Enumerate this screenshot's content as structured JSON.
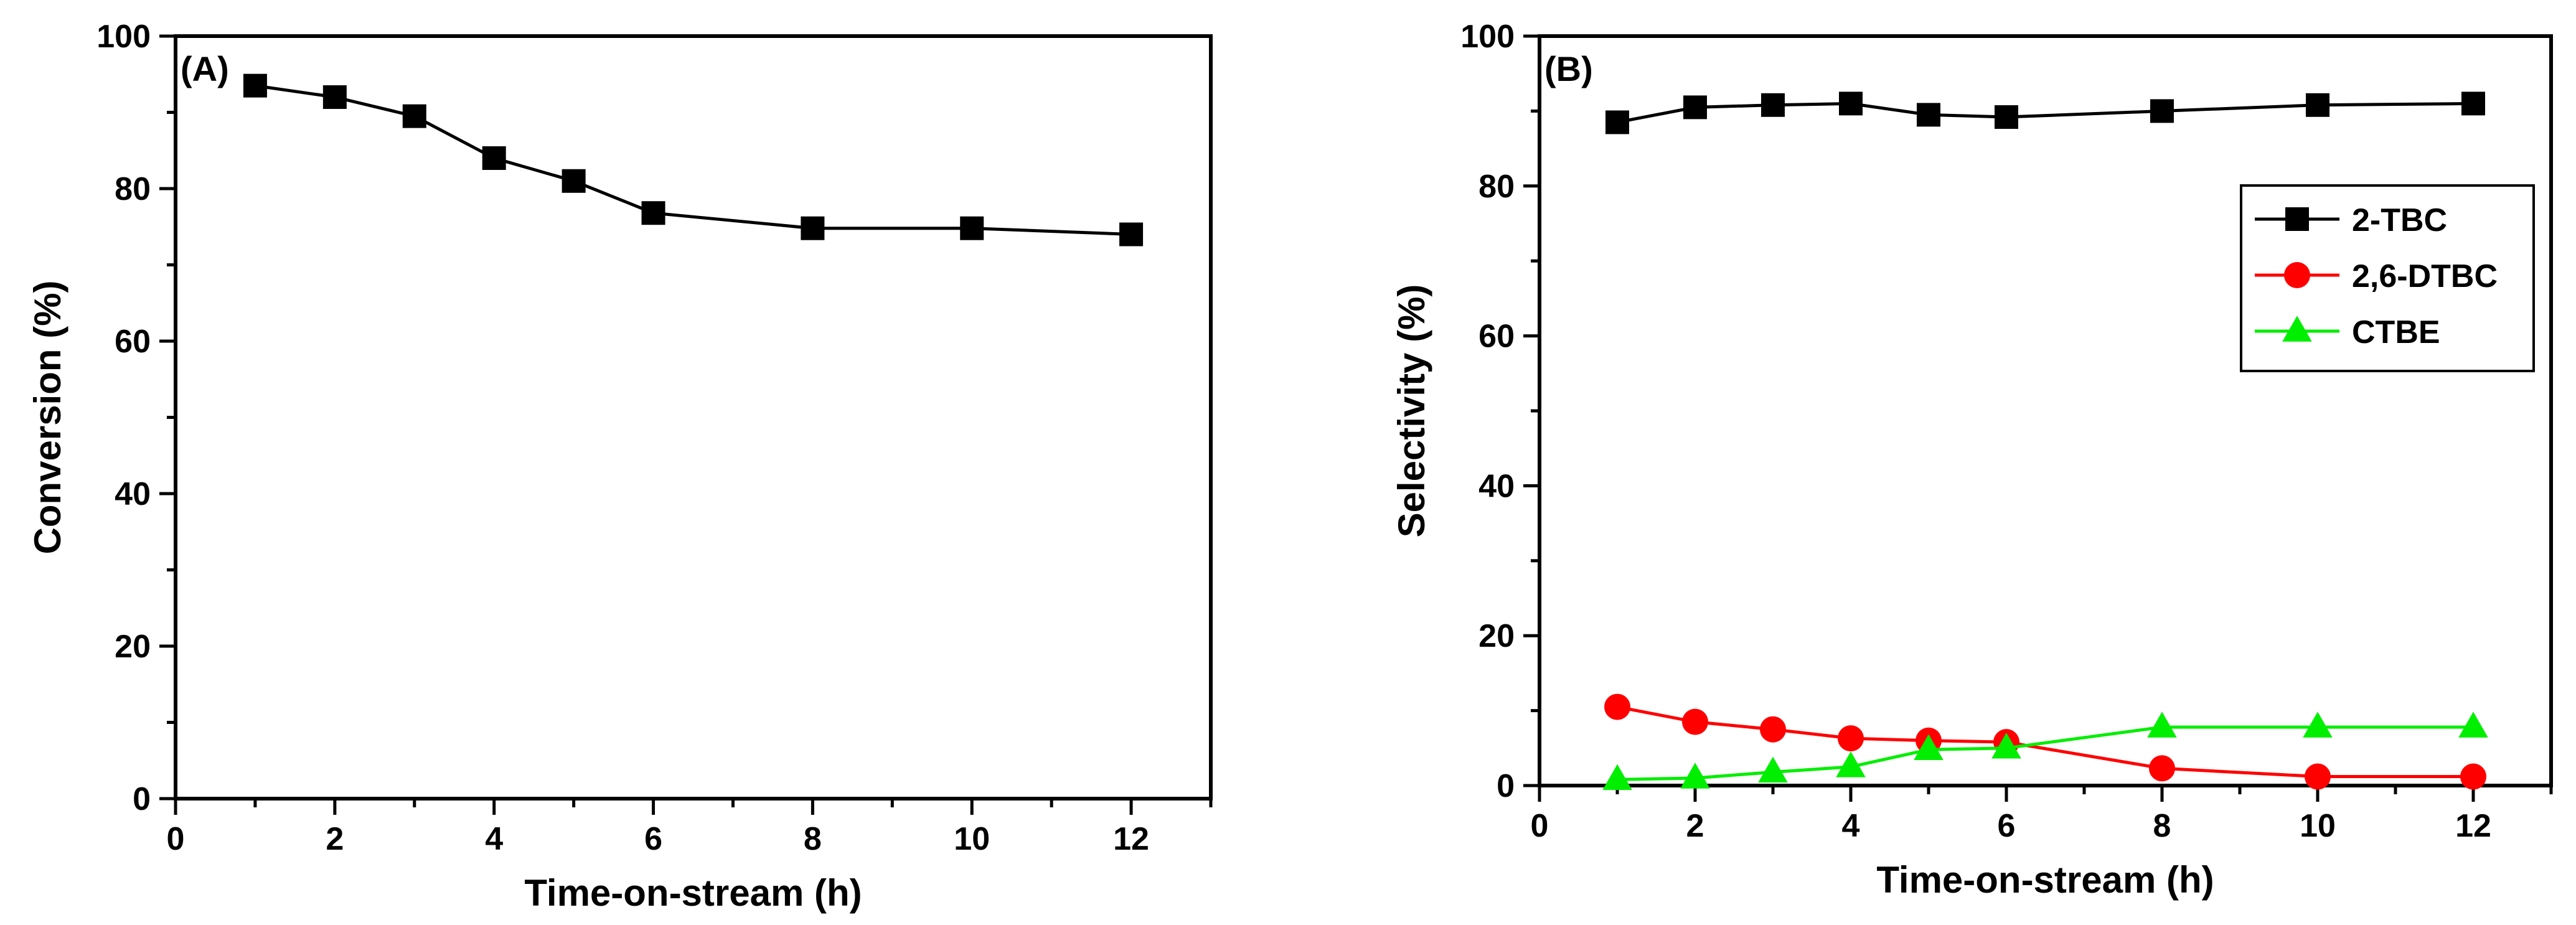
{
  "chart_data": [
    {
      "type": "line",
      "panel_label": "(A)",
      "xlabel": "Time-on-stream (h)",
      "ylabel": "Conversion (%)",
      "xlim": [
        0,
        13
      ],
      "ylim": [
        0,
        100
      ],
      "xticks": [
        0,
        2,
        4,
        6,
        8,
        10,
        12
      ],
      "yticks": [
        0,
        20,
        40,
        60,
        80,
        100
      ],
      "series": [
        {
          "name": "Conversion",
          "color": "#000000",
          "marker": "square",
          "x": [
            1,
            2,
            3,
            4,
            5,
            6,
            8,
            10,
            12
          ],
          "values": [
            93.5,
            92,
            89.5,
            84,
            81,
            76.8,
            74.8,
            74.8,
            74
          ]
        }
      ]
    },
    {
      "type": "line",
      "panel_label": "(B)",
      "xlabel": "Time-on-stream (h)",
      "ylabel": "Selectivity (%)",
      "xlim": [
        0,
        13
      ],
      "ylim": [
        0,
        100
      ],
      "xticks": [
        0,
        2,
        4,
        6,
        8,
        10,
        12
      ],
      "yticks": [
        0,
        20,
        40,
        60,
        80,
        100
      ],
      "legend_position": "upper-right",
      "series": [
        {
          "name": "2-TBC",
          "color": "#000000",
          "marker": "square",
          "x": [
            1,
            2,
            3,
            4,
            5,
            6,
            8,
            10,
            12
          ],
          "values": [
            88.5,
            90.5,
            90.8,
            91,
            89.5,
            89.2,
            90,
            90.8,
            91
          ]
        },
        {
          "name": "2,6-DTBC",
          "color": "#ff0000",
          "marker": "circle",
          "x": [
            1,
            2,
            3,
            4,
            5,
            6,
            8,
            10,
            12
          ],
          "values": [
            10.5,
            8.5,
            7.5,
            6.3,
            6,
            5.8,
            2.3,
            1.2,
            1.2
          ]
        },
        {
          "name": "CTBE",
          "color": "#00ee00",
          "marker": "triangle",
          "x": [
            1,
            2,
            3,
            4,
            5,
            6,
            8,
            10,
            12
          ],
          "values": [
            0.8,
            1,
            1.8,
            2.5,
            4.8,
            5,
            7.8,
            7.8,
            7.8
          ]
        }
      ]
    }
  ]
}
